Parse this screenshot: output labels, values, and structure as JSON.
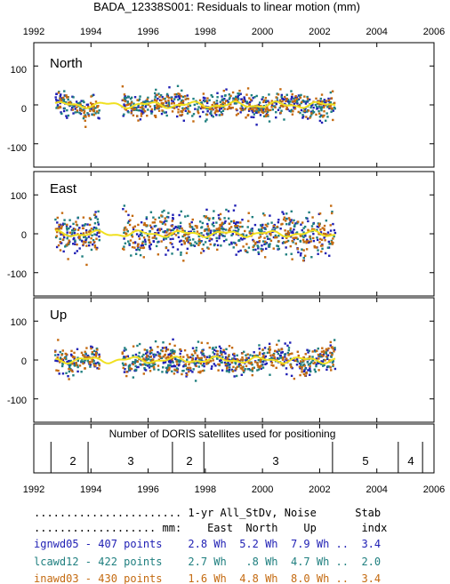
{
  "chart_data": {
    "type": "scatter",
    "title": "BADA_12338S001: Residuals to linear motion (mm)",
    "x_ticks": [
      "1992",
      "1994",
      "1996",
      "1998",
      "2000",
      "2002",
      "2004",
      "2006"
    ],
    "xlim": [
      1992,
      2006
    ],
    "data_span": [
      1992.75,
      2002.55
    ],
    "panels": [
      {
        "name": "North",
        "ylim": [
          -160,
          160
        ],
        "y_ticks": [
          "100",
          "0",
          "-100"
        ],
        "spread": 16,
        "gap_from": 1994.3,
        "gap_to": 1995.1
      },
      {
        "name": "East",
        "ylim": [
          -160,
          160
        ],
        "y_ticks": [
          "100",
          "0",
          "-100"
        ],
        "spread": 26,
        "gap_from": 1994.3,
        "gap_to": 1995.1
      },
      {
        "name": "Up",
        "ylim": [
          -160,
          160
        ],
        "y_ticks": [
          "100",
          "0",
          "-100"
        ],
        "spread": 18,
        "gap_from": 1994.3,
        "gap_to": 1995.1
      }
    ],
    "satellites": {
      "label": "Number of DORIS satellites used for positioning",
      "segments": [
        {
          "from": 1992.6,
          "to": 1993.9,
          "value": "2"
        },
        {
          "from": 1993.9,
          "to": 1996.85,
          "value": "3"
        },
        {
          "from": 1996.85,
          "to": 1997.95,
          "value": "2"
        },
        {
          "from": 1997.95,
          "to": 2002.45,
          "value": "3"
        },
        {
          "from": 2002.45,
          "to": 2004.75,
          "value": "5"
        },
        {
          "from": 2004.75,
          "to": 2005.6,
          "value": "4"
        }
      ]
    },
    "series": [
      {
        "name": "ignwd05",
        "color": "#1f1fb4"
      },
      {
        "name": "lcawd12",
        "color": "#1f7f7f"
      },
      {
        "name": "inawd03",
        "color": "#c46a10"
      }
    ],
    "smooth_color": "#f0e020"
  },
  "stats": {
    "header1": "....................... 1-yr All_StDv, Noise      Stab",
    "header2": "................... mm:    East  North    Up       indx",
    "rows": [
      {
        "text": "ignwd05 - 407 points    2.8 Wh  5.2 Wh  7.9 Wh ..  3.4",
        "color": "#1f1fb4"
      },
      {
        "text": "lcawd12 - 422 points    2.7 Wh   .8 Wh  4.7 Wh ..  2.0",
        "color": "#1f7f7f"
      },
      {
        "text": "inawd03 - 430 points    1.6 Wh  4.8 Wh  8.0 Wh ..  3.4",
        "color": "#c46a10"
      }
    ]
  }
}
